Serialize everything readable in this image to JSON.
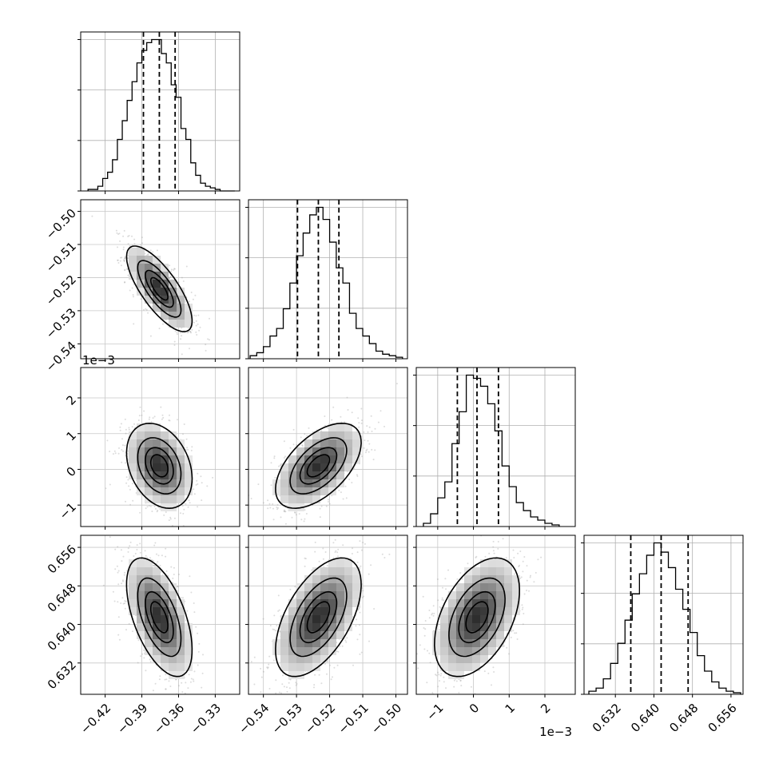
{
  "chart_data": {
    "type": "corner",
    "parameters": 4,
    "axes": {
      "p0": {
        "range": [
          -0.44,
          -0.31
        ],
        "ticks": [
          -0.42,
          -0.39,
          -0.36,
          -0.33
        ],
        "tick_labels": [
          "−0.42",
          "−0.39",
          "−0.36",
          "−0.33"
        ],
        "offset_text": ""
      },
      "p1": {
        "range": [
          -0.5445,
          -0.4965
        ],
        "ticks": [
          -0.54,
          -0.53,
          -0.52,
          -0.51,
          -0.5
        ],
        "tick_labels": [
          "−0.54",
          "−0.53",
          "−0.52",
          "−0.51",
          "−0.50"
        ],
        "offset_text": ""
      },
      "p2": {
        "range": [
          -1.6,
          2.85
        ],
        "ticks": [
          -1,
          0,
          1,
          2
        ],
        "tick_labels": [
          "−1",
          "0",
          "1",
          "2"
        ],
        "offset_text": "1e−3"
      },
      "p3": {
        "range": [
          0.6255,
          0.6585
        ],
        "ticks": [
          0.632,
          0.64,
          0.648,
          0.656
        ],
        "tick_labels": [
          "0.632",
          "0.640",
          "0.648",
          "0.656"
        ],
        "offset_text": ""
      }
    },
    "quantiles": {
      "p0": [
        -0.3887,
        -0.3757,
        -0.3628
      ],
      "p1": [
        -0.5297,
        -0.5234,
        -0.5172
      ],
      "p2": [
        -0.45,
        0.1,
        0.7
      ],
      "p3": [
        0.6352,
        0.6415,
        0.6471
      ]
    },
    "histograms": {
      "p0": {
        "edges": [
          -0.434,
          -0.426,
          -0.422,
          -0.418,
          -0.414,
          -0.41,
          -0.406,
          -0.402,
          -0.398,
          -0.394,
          -0.39,
          -0.386,
          -0.382,
          -0.378,
          -0.374,
          -0.37,
          -0.366,
          -0.362,
          -0.358,
          -0.354,
          -0.35,
          -0.346,
          -0.342,
          -0.338,
          -0.334,
          -0.33,
          -0.326,
          -0.322,
          -0.318,
          -0.314
        ],
        "counts": [
          1,
          3,
          8,
          12,
          20,
          33,
          45,
          58,
          70,
          82,
          90,
          95,
          97,
          97,
          88,
          82,
          68,
          60,
          40,
          33,
          18,
          10,
          5,
          3,
          2,
          1,
          0,
          0,
          0
        ]
      },
      "p1": {
        "edges": [
          -0.544,
          -0.542,
          -0.54,
          -0.538,
          -0.536,
          -0.534,
          -0.532,
          -0.53,
          -0.528,
          -0.526,
          -0.524,
          -0.522,
          -0.52,
          -0.518,
          -0.516,
          -0.514,
          -0.512,
          -0.51,
          -0.508,
          -0.506,
          -0.504,
          -0.502,
          -0.5,
          -0.498
        ],
        "counts": [
          2,
          4,
          8,
          15,
          20,
          33,
          50,
          68,
          83,
          95,
          100,
          92,
          77,
          60,
          50,
          30,
          20,
          15,
          10,
          5,
          3,
          2,
          1
        ]
      },
      "p2": {
        "edges": [
          -1.4,
          -1.2,
          -1.0,
          -0.8,
          -0.6,
          -0.4,
          -0.2,
          0.0,
          0.2,
          0.4,
          0.6,
          0.8,
          1.0,
          1.2,
          1.4,
          1.6,
          1.8,
          2.0,
          2.2,
          2.4
        ],
        "counts": [
          2,
          8,
          18,
          28,
          52,
          72,
          95,
          93,
          88,
          77,
          60,
          38,
          25,
          15,
          10,
          6,
          4,
          2,
          1
        ]
      },
      "p3": {
        "edges": [
          0.6265,
          0.628,
          0.6295,
          0.631,
          0.6325,
          0.634,
          0.6355,
          0.637,
          0.6385,
          0.64,
          0.6415,
          0.643,
          0.6445,
          0.646,
          0.6475,
          0.649,
          0.6505,
          0.652,
          0.6535,
          0.655,
          0.6565,
          0.658
        ],
        "counts": [
          2,
          4,
          10,
          20,
          33,
          48,
          65,
          78,
          90,
          98,
          92,
          82,
          68,
          55,
          40,
          25,
          15,
          8,
          4,
          2,
          1
        ]
      }
    },
    "correlations": {
      "p1_vs_p0": -0.75,
      "p2_vs_p0": -0.3,
      "p2_vs_p1": 0.55,
      "p3_vs_p0": -0.55,
      "p3_vs_p1": 0.55,
      "p3_vs_p2": 0.45
    },
    "contour_levels_sigma": [
      0.5,
      1.0,
      1.5,
      2.0
    ],
    "grid": true,
    "quantile_line_style": "dashed"
  }
}
